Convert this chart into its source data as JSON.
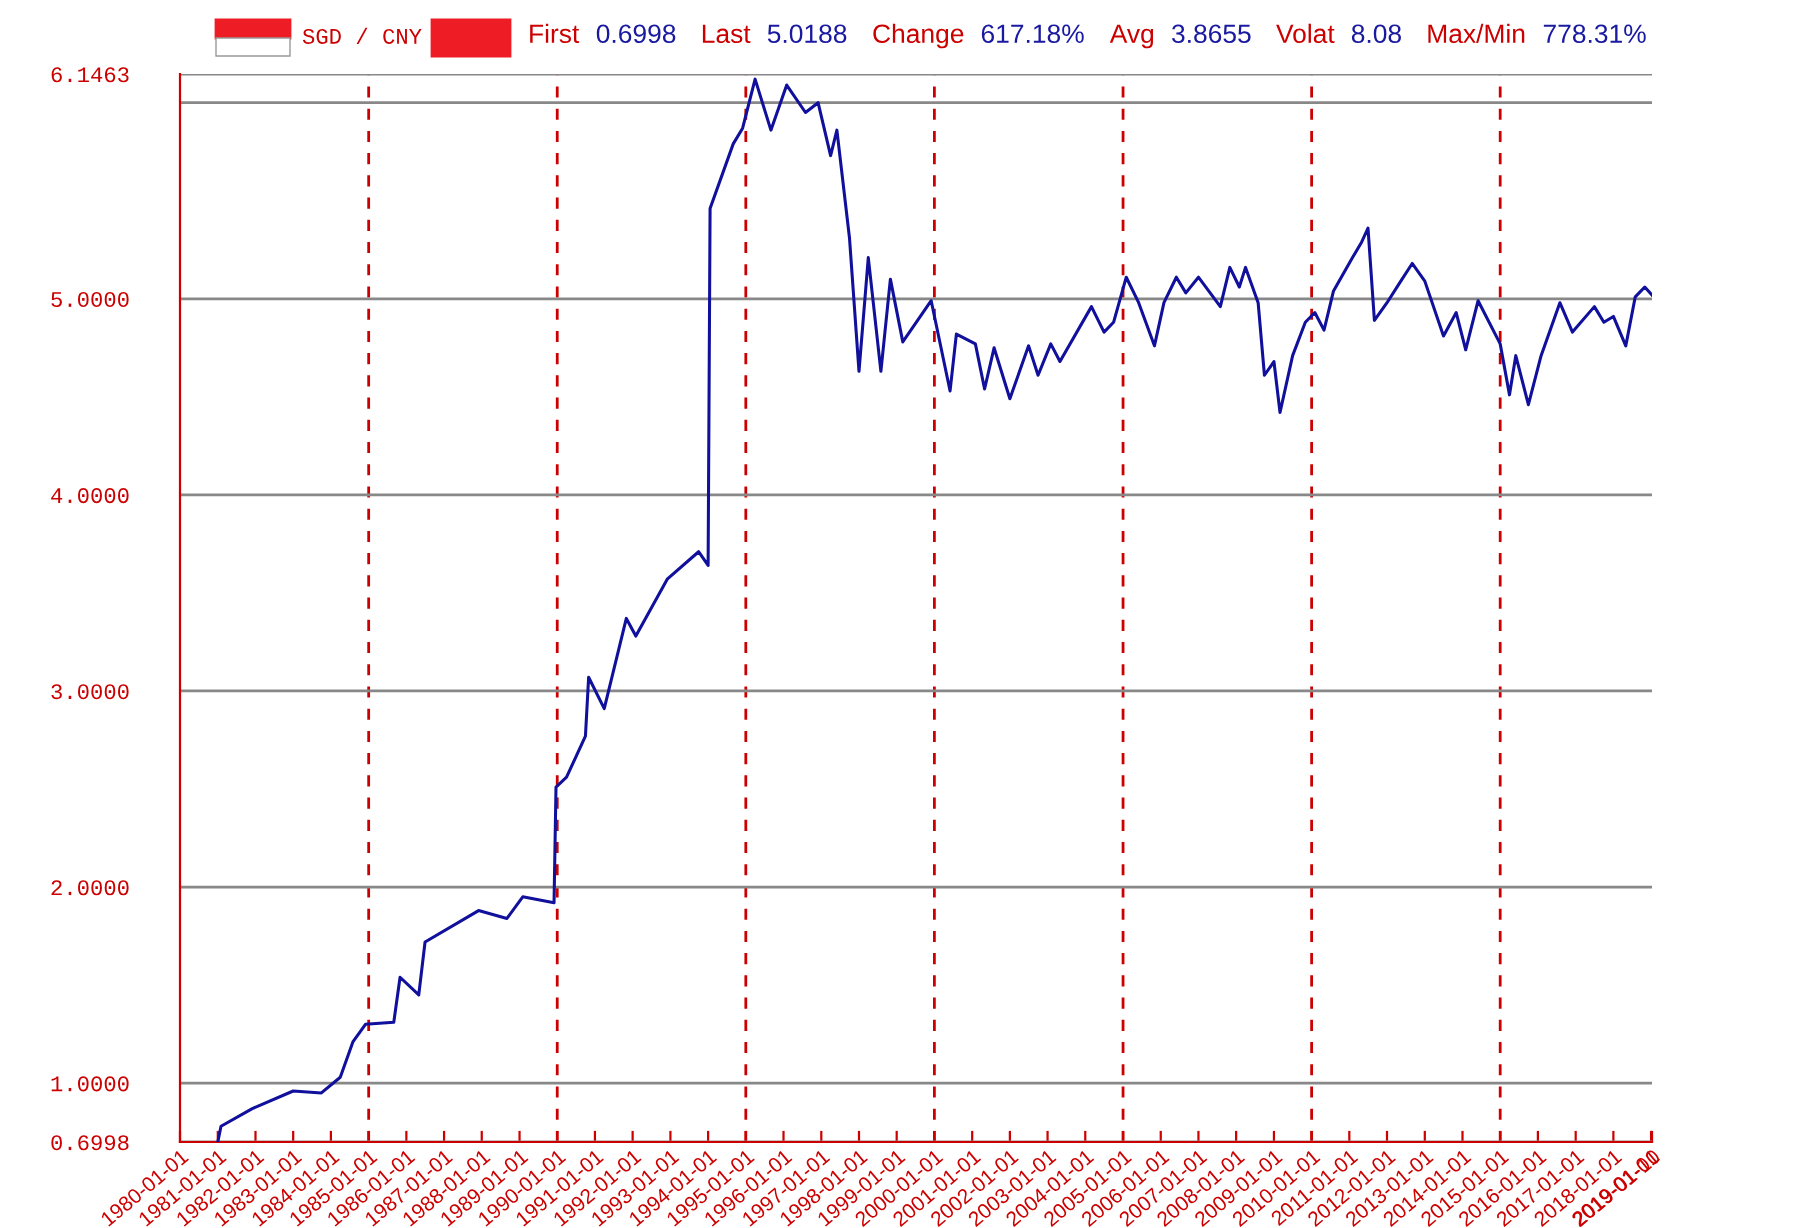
{
  "chart_data": {
    "type": "line",
    "title": "SGD / CNY",
    "annotations": [
      "First",
      "0.6998",
      "Last",
      "5.0188",
      "Change",
      "617.18%",
      "Avg",
      "3.8655",
      "Volat",
      "8.08",
      "Max/Min",
      "778.31%"
    ],
    "x": [
      "1981-01",
      "1981-02",
      "1981-12",
      "1983-01",
      "1983-10",
      "1984-04",
      "1984-08",
      "1984-12",
      "1985-09",
      "1985-11",
      "1986-05",
      "1986-07",
      "1987-12",
      "1988-09",
      "1989-02",
      "1989-12",
      "1989-12-20",
      "1990-04",
      "1990-10",
      "1990-11",
      "1991-04",
      "1991-11",
      "1992-02",
      "1992-12",
      "1993-10",
      "1994-01-01",
      "1994-01-20",
      "1994-09",
      "1994-12",
      "1995-04",
      "1995-09",
      "1996-02",
      "1996-08",
      "1996-12",
      "1997-04",
      "1997-06",
      "1997-10",
      "1998-01",
      "1998-04",
      "1998-08",
      "1998-11",
      "1999-03",
      "1999-12",
      "2000-06",
      "2000-08",
      "2001-02",
      "2001-05",
      "2001-08",
      "2002-01",
      "2002-07",
      "2002-10",
      "2003-02",
      "2003-05",
      "2004-03",
      "2004-07",
      "2004-10",
      "2005-02",
      "2005-06",
      "2005-11",
      "2006-02",
      "2006-06",
      "2006-09",
      "2007-01",
      "2007-08",
      "2007-11",
      "2008-02",
      "2008-04",
      "2008-08",
      "2008-10",
      "2009-01",
      "2009-03",
      "2009-07",
      "2009-11",
      "2010-02",
      "2010-05",
      "2010-08",
      "2011-02",
      "2011-05",
      "2011-07",
      "2011-09",
      "2012-01",
      "2012-05",
      "2012-09",
      "2013-01",
      "2013-07",
      "2013-11",
      "2014-02",
      "2014-06",
      "2015-01",
      "2015-04",
      "2015-06",
      "2015-10",
      "2016-02",
      "2016-08",
      "2016-12",
      "2017-07",
      "2017-10",
      "2018-01",
      "2018-05",
      "2018-08",
      "2018-11",
      "2019-01-10"
    ],
    "series": [
      {
        "color": "#10109c",
        "values": [
          0.6998,
          0.78,
          0.87,
          0.96,
          0.95,
          1.03,
          1.21,
          1.3,
          1.31,
          1.54,
          1.45,
          1.72,
          1.88,
          1.84,
          1.95,
          1.92,
          2.51,
          2.56,
          2.77,
          3.07,
          2.91,
          3.37,
          3.28,
          3.57,
          3.71,
          3.64,
          5.46,
          5.79,
          5.87,
          6.12,
          5.86,
          6.09,
          5.95,
          6.0,
          5.73,
          5.86,
          5.31,
          4.63,
          5.21,
          4.63,
          5.1,
          4.78,
          4.99,
          4.53,
          4.82,
          4.77,
          4.54,
          4.75,
          4.49,
          4.76,
          4.61,
          4.77,
          4.68,
          4.96,
          4.83,
          4.88,
          5.11,
          4.98,
          4.76,
          4.98,
          5.11,
          5.03,
          5.11,
          4.96,
          5.16,
          5.06,
          5.16,
          4.98,
          4.61,
          4.68,
          4.42,
          4.71,
          4.88,
          4.93,
          4.84,
          5.04,
          5.21,
          5.29,
          5.36,
          4.89,
          4.98,
          5.08,
          5.18,
          5.09,
          4.81,
          4.93,
          4.74,
          4.99,
          4.77,
          4.51,
          4.71,
          4.46,
          4.71,
          4.98,
          4.83,
          4.96,
          4.88,
          4.91,
          4.76,
          5.01,
          5.06,
          5.0188
        ]
      }
    ],
    "ylim": [
      0.6998,
      6.1463
    ],
    "yticks": [
      {
        "value": 0.6998,
        "label": "0.6998"
      },
      {
        "value": 1,
        "label": "1.0000"
      },
      {
        "value": 2,
        "label": "2.0000"
      },
      {
        "value": 3,
        "label": "3.0000"
      },
      {
        "value": 4,
        "label": "4.0000"
      },
      {
        "value": 5,
        "label": "5.0000"
      },
      {
        "value": 6,
        "label": null
      },
      {
        "value": 6.1463,
        "label": "6.1463"
      }
    ],
    "xlim": [
      "1980-01-01",
      "2019-01-10"
    ],
    "xticks": [
      "1980-01-01",
      "1981-01-01",
      "1982-01-01",
      "1983-01-01",
      "1984-01-01",
      "1985-01-01",
      "1986-01-01",
      "1987-01-01",
      "1988-01-01",
      "1989-01-01",
      "1990-01-01",
      "1991-01-01",
      "1992-01-01",
      "1993-01-01",
      "1994-01-01",
      "1995-01-01",
      "1996-01-01",
      "1997-01-01",
      "1998-01-01",
      "1999-01-01",
      "2000-01-01",
      "2001-01-01",
      "2002-01-01",
      "2003-01-01",
      "2004-01-01",
      "2005-01-01",
      "2006-01-01",
      "2007-01-01",
      "2008-01-01",
      "2009-01-01",
      "2010-01-01",
      "2011-01-01",
      "2012-01-01",
      "2013-01-01",
      "2014-01-01",
      "2015-01-01",
      "2016-01-01",
      "2017-01-01",
      "2018-01-01",
      "2019-01-01",
      "2019-01-10"
    ],
    "ref_lines": [
      {
        "axis": "x",
        "value": "1985-01-01",
        "color": "#cc0000",
        "line_style": "dashed"
      },
      {
        "axis": "x",
        "value": "1990-01-01",
        "color": "#cc0000",
        "line_style": "dashed"
      },
      {
        "axis": "x",
        "value": "1995-01-01",
        "color": "#cc0000",
        "line_style": "dashed"
      },
      {
        "axis": "x",
        "value": "2000-01-01",
        "color": "#cc0000",
        "line_style": "dashed"
      },
      {
        "axis": "x",
        "value": "2005-01-01",
        "color": "#cc0000",
        "line_style": "dashed"
      },
      {
        "axis": "x",
        "value": "2010-01-01",
        "color": "#cc0000",
        "line_style": "dashed"
      },
      {
        "axis": "x",
        "value": "2015-01-01",
        "color": "#cc0000",
        "line_style": "dashed"
      }
    ],
    "grid": "y",
    "marker": "none",
    "line_style": "solid"
  }
}
